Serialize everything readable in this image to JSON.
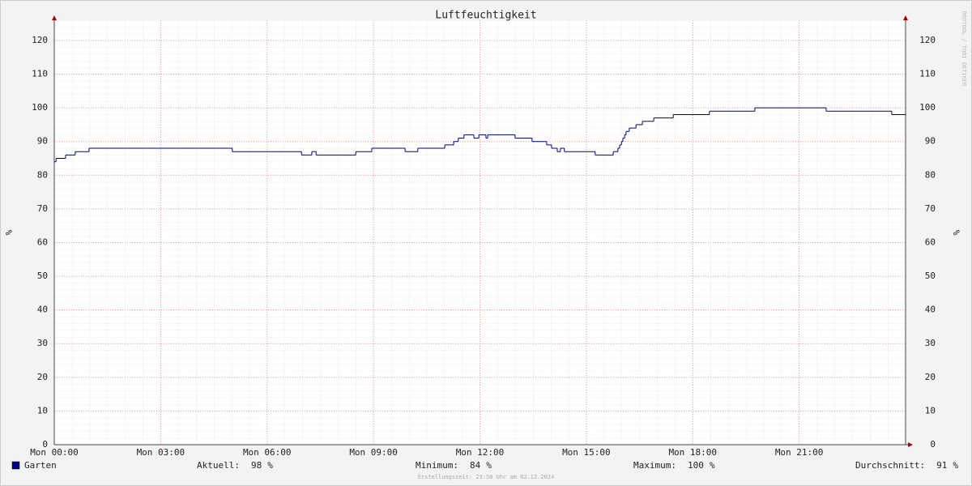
{
  "chart_data": {
    "type": "line",
    "title": "Luftfeuchtigkeit",
    "y_label": "%",
    "y2_label": "%",
    "watermark": "RRDTOOL / TOBI OETIKER",
    "footer": "Erstellungszeit: 23:58 Uhr am 02.12.2024",
    "xlim": [
      0,
      24
    ],
    "xticks": [
      {
        "value": 0,
        "label": "Mon 00:00"
      },
      {
        "value": 3,
        "label": "Mon 03:00"
      },
      {
        "value": 6,
        "label": "Mon 06:00"
      },
      {
        "value": 9,
        "label": "Mon 09:00"
      },
      {
        "value": 12,
        "label": "Mon 12:00"
      },
      {
        "value": 15,
        "label": "Mon 15:00"
      },
      {
        "value": 18,
        "label": "Mon 18:00"
      },
      {
        "value": 21,
        "label": "Mon 21:00"
      }
    ],
    "ylim": [
      0,
      126
    ],
    "yticks": [
      0,
      10,
      20,
      30,
      40,
      50,
      60,
      70,
      80,
      90,
      100,
      110,
      120
    ],
    "y2lim": [
      0,
      126
    ],
    "y2ticks": [
      0,
      10,
      20,
      30,
      40,
      50,
      60,
      70,
      80,
      90,
      100,
      110,
      120
    ],
    "grid": true,
    "step": true,
    "x": [
      0,
      0.05,
      0.32,
      0.59,
      0.98,
      5.02,
      6.97,
      7.26,
      7.38,
      8.5,
      8.95,
      9.89,
      10.25,
      11.01,
      11.26,
      11.39,
      11.55,
      11.83,
      11.97,
      12.17,
      12.22,
      12.99,
      13.47,
      13.88,
      14.02,
      14.18,
      14.27,
      14.38,
      15.25,
      15.76,
      15.89,
      15.94,
      15.99,
      16.03,
      16.08,
      16.12,
      16.21,
      16.4,
      16.58,
      16.9,
      17.45,
      18.47,
      19.75,
      21.76,
      23.61,
      24
    ],
    "series": [
      {
        "name": "Garten",
        "color": "#000080",
        "values": [
          84,
          85,
          86,
          87,
          88,
          87,
          86,
          87,
          86,
          87,
          88,
          87,
          88,
          89,
          90,
          91,
          92,
          91,
          92,
          91,
          92,
          91,
          90,
          89,
          88,
          87,
          88,
          87,
          86,
          87,
          88,
          89,
          90,
          91,
          92,
          93,
          94,
          95,
          96,
          97,
          98,
          99,
          100,
          99,
          98,
          98
        ]
      }
    ],
    "unit": "%",
    "stats": [
      {
        "name": "Aktuell:",
        "value": 98
      },
      {
        "name": "Minimum:",
        "value": 84
      },
      {
        "name": "Maximum:",
        "value": 100
      },
      {
        "name": "Durchschnitt:",
        "value": 91
      }
    ]
  }
}
